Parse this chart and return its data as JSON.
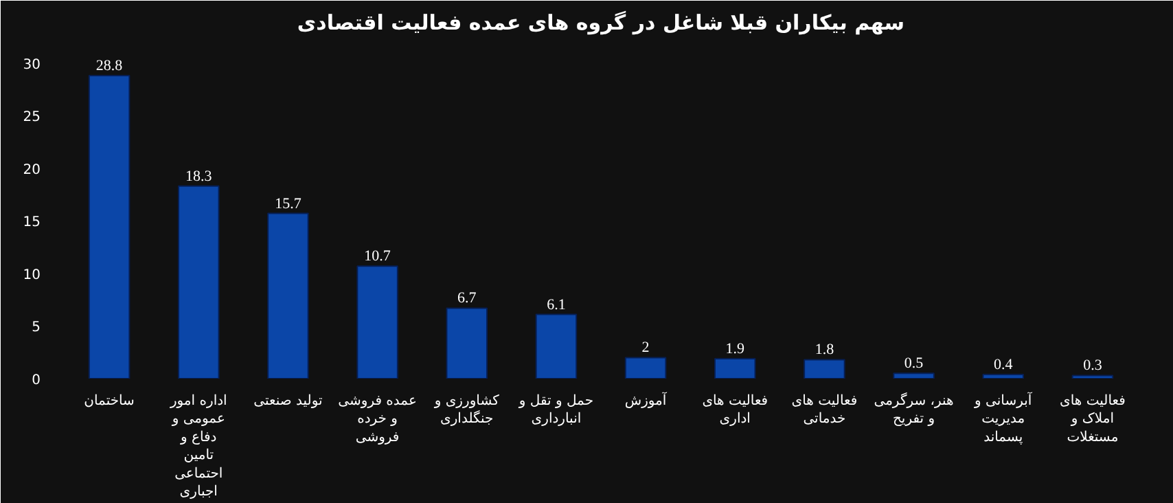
{
  "chart_data": {
    "type": "bar",
    "title": "سهم بیکاران قبلا شاغل در گروه های عمده فعالیت اقتصادی",
    "categories": [
      "ساختمان",
      "اداره امور عمومی و دفاع و تامین احتماعی اجباری",
      "تولید صنعتی",
      "عمده فروشی و خرده فروشی",
      "کشاورزی و جنگلداری",
      "حمل و تقل و انبارداری",
      "آموزش",
      "فعالیت های اداری",
      "فعالیت های خدماتی",
      "هنر، سرگرمی و تفریح",
      "آبرسانی و مدیریت پسماند",
      "فعالیت های املاک و مستغلات"
    ],
    "values": [
      28.8,
      18.3,
      15.7,
      10.7,
      6.7,
      6.1,
      2,
      1.9,
      1.8,
      0.5,
      0.4,
      0.3
    ],
    "color": "#0b46a8",
    "ylim": [
      0,
      32
    ],
    "yticks": [
      0,
      5,
      10,
      15,
      20,
      25,
      30
    ],
    "grid": false,
    "data_labels": true
  }
}
